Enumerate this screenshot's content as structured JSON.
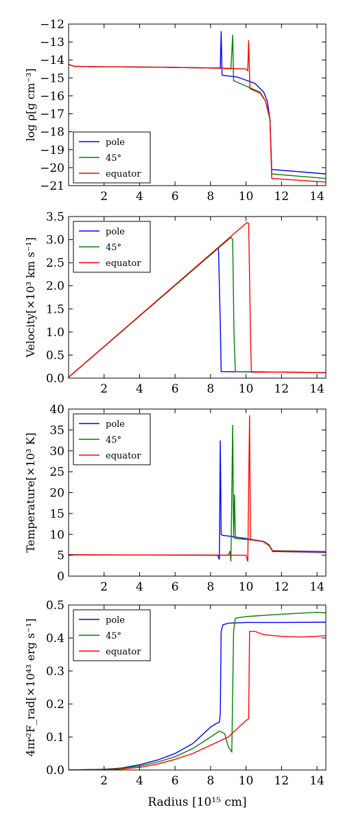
{
  "colors": {
    "pole": "#0000ff",
    "deg45": "#008000",
    "equator": "#ff0000",
    "axes": "#000000"
  },
  "x_axis": {
    "label": "Radius [10¹⁵ cm]",
    "ticks": [
      "2",
      "4",
      "6",
      "8",
      "10",
      "12",
      "14"
    ],
    "range": [
      0,
      14.5
    ]
  },
  "legend_entries": [
    "pole",
    "45°",
    "equator"
  ],
  "chart_data": [
    {
      "type": "line",
      "ylabel": "log ρ[g cm⁻³]",
      "xlabel": "",
      "xlim": [
        0,
        14.5
      ],
      "ylim": [
        -21,
        -12
      ],
      "yticks": [
        "-12",
        "-13",
        "-14",
        "-15",
        "-16",
        "-17",
        "-18",
        "-19",
        "-20",
        "-21"
      ],
      "ytick_values": [
        -12,
        -13,
        -14,
        -15,
        -16,
        -17,
        -18,
        -19,
        -20,
        -21
      ],
      "legend_position": "bottom-left",
      "series": [
        {
          "name": "pole",
          "color": "#0000ff",
          "points": [
            [
              0,
              -14.25
            ],
            [
              0.3,
              -14.35
            ],
            [
              1.5,
              -14.38
            ],
            [
              5,
              -14.4
            ],
            [
              8.3,
              -14.45
            ],
            [
              8.55,
              -14.45
            ],
            [
              8.6,
              -12.4
            ],
            [
              8.65,
              -14.85
            ],
            [
              9.5,
              -14.95
            ],
            [
              10.5,
              -15.3
            ],
            [
              11,
              -15.8
            ],
            [
              11.2,
              -16.3
            ],
            [
              11.35,
              -17.3
            ],
            [
              11.45,
              -20.1
            ],
            [
              14.5,
              -20.35
            ]
          ]
        },
        {
          "name": "45°",
          "color": "#008000",
          "points": [
            [
              0,
              -14.25
            ],
            [
              0.3,
              -14.35
            ],
            [
              1.5,
              -14.38
            ],
            [
              5,
              -14.4
            ],
            [
              8.5,
              -14.45
            ],
            [
              9.15,
              -14.5
            ],
            [
              9.25,
              -12.6
            ],
            [
              9.3,
              -15.15
            ],
            [
              10,
              -15.45
            ],
            [
              10.8,
              -15.8
            ],
            [
              11.1,
              -16.3
            ],
            [
              11.35,
              -17.3
            ],
            [
              11.45,
              -20.35
            ],
            [
              14.5,
              -20.6
            ]
          ]
        },
        {
          "name": "equator",
          "color": "#ff0000",
          "points": [
            [
              0,
              -14.25
            ],
            [
              0.3,
              -14.35
            ],
            [
              1.5,
              -14.38
            ],
            [
              5,
              -14.4
            ],
            [
              8.5,
              -14.45
            ],
            [
              10,
              -14.5
            ],
            [
              10.1,
              -14.6
            ],
            [
              10.15,
              -12.9
            ],
            [
              10.22,
              -15.6
            ],
            [
              10.8,
              -15.85
            ],
            [
              11.1,
              -16.3
            ],
            [
              11.35,
              -17.3
            ],
            [
              11.45,
              -20.6
            ],
            [
              14.5,
              -20.8
            ]
          ]
        }
      ]
    },
    {
      "type": "line",
      "ylabel": "Velocity[×10³ km s⁻¹]",
      "xlabel": "",
      "xlim": [
        0,
        14.5
      ],
      "ylim": [
        0,
        3.5
      ],
      "yticks": [
        "0.0",
        "0.5",
        "1.0",
        "1.5",
        "2.0",
        "2.5",
        "3.0",
        "3.5"
      ],
      "ytick_values": [
        0,
        0.5,
        1.0,
        1.5,
        2.0,
        2.5,
        3.0,
        3.5
      ],
      "legend_position": "top-left",
      "series": [
        {
          "name": "pole",
          "color": "#0000ff",
          "points": [
            [
              0,
              0.02
            ],
            [
              8.45,
              2.82
            ],
            [
              8.55,
              1.2
            ],
            [
              8.6,
              0.14
            ],
            [
              12,
              0.13
            ],
            [
              14.5,
              0.12
            ]
          ]
        },
        {
          "name": "45°",
          "color": "#008000",
          "points": [
            [
              0,
              0.02
            ],
            [
              9.15,
              3.05
            ],
            [
              9.25,
              3.0
            ],
            [
              9.32,
              1.0
            ],
            [
              9.4,
              0.14
            ],
            [
              12,
              0.13
            ],
            [
              14.5,
              0.12
            ]
          ]
        },
        {
          "name": "equator",
          "color": "#ff0000",
          "points": [
            [
              0,
              0.02
            ],
            [
              10.05,
              3.37
            ],
            [
              10.15,
              3.35
            ],
            [
              10.25,
              1.0
            ],
            [
              10.3,
              0.13
            ],
            [
              12,
              0.13
            ],
            [
              14.5,
              0.12
            ]
          ]
        }
      ]
    },
    {
      "type": "line",
      "ylabel": "Temperature[×10³ K]",
      "xlabel": "",
      "xlim": [
        0,
        14.5
      ],
      "ylim": [
        0,
        40
      ],
      "yticks": [
        "0",
        "5",
        "10",
        "15",
        "20",
        "25",
        "30",
        "35",
        "40"
      ],
      "ytick_values": [
        0,
        5,
        10,
        15,
        20,
        25,
        30,
        35,
        40
      ],
      "legend_position": "top-left",
      "series": [
        {
          "name": "pole",
          "color": "#0000ff",
          "points": [
            [
              0,
              5.1
            ],
            [
              8.4,
              5.0
            ],
            [
              8.5,
              4.0
            ],
            [
              8.55,
              32.5
            ],
            [
              8.6,
              10
            ],
            [
              8.65,
              9.8
            ],
            [
              10,
              9.0
            ],
            [
              11,
              8.3
            ],
            [
              11.3,
              7.5
            ],
            [
              11.5,
              5.9
            ],
            [
              14.5,
              5.7
            ]
          ]
        },
        {
          "name": "45°",
          "color": "#008000",
          "points": [
            [
              0,
              5.1
            ],
            [
              9.0,
              5.0
            ],
            [
              9.1,
              6.0
            ],
            [
              9.15,
              3.5
            ],
            [
              9.25,
              36.2
            ],
            [
              9.3,
              9.0
            ],
            [
              9.35,
              19.5
            ],
            [
              9.4,
              9.0
            ],
            [
              10,
              8.8
            ],
            [
              11,
              8.3
            ],
            [
              11.3,
              7.5
            ],
            [
              11.5,
              6.1
            ],
            [
              14.5,
              5.9
            ]
          ]
        },
        {
          "name": "equator",
          "color": "#ff0000",
          "points": [
            [
              0,
              5.1
            ],
            [
              10.0,
              5.0
            ],
            [
              10.1,
              3.5
            ],
            [
              10.2,
              38.5
            ],
            [
              10.25,
              8.8
            ],
            [
              11,
              8.2
            ],
            [
              11.3,
              7.3
            ],
            [
              11.5,
              6.0
            ],
            [
              14.5,
              5.8
            ]
          ]
        }
      ]
    },
    {
      "type": "line",
      "ylabel": "4πr²F_rad[×10⁴³ erg s⁻¹]",
      "xlabel": "Radius [10¹⁵ cm]",
      "xlim": [
        0,
        14.5
      ],
      "ylim": [
        0,
        0.5
      ],
      "yticks": [
        "0.0",
        "0.1",
        "0.2",
        "0.3",
        "0.4",
        "0.5"
      ],
      "ytick_values": [
        0,
        0.1,
        0.2,
        0.3,
        0.4,
        0.5
      ],
      "legend_position": "top-left",
      "series": [
        {
          "name": "pole",
          "color": "#0000ff",
          "points": [
            [
              0,
              0
            ],
            [
              2,
              0.002
            ],
            [
              3,
              0.006
            ],
            [
              4,
              0.016
            ],
            [
              5,
              0.03
            ],
            [
              6,
              0.05
            ],
            [
              7,
              0.08
            ],
            [
              8,
              0.13
            ],
            [
              8.3,
              0.14
            ],
            [
              8.5,
              0.145
            ],
            [
              8.55,
              0.17
            ],
            [
              8.6,
              0.42
            ],
            [
              8.7,
              0.44
            ],
            [
              9,
              0.445
            ],
            [
              10,
              0.447
            ],
            [
              12,
              0.447
            ],
            [
              14.5,
              0.448
            ]
          ]
        },
        {
          "name": "45°",
          "color": "#008000",
          "points": [
            [
              0,
              0
            ],
            [
              2,
              0.002
            ],
            [
              3,
              0.005
            ],
            [
              4,
              0.012
            ],
            [
              5,
              0.024
            ],
            [
              6,
              0.04
            ],
            [
              7,
              0.065
            ],
            [
              8,
              0.1
            ],
            [
              8.5,
              0.118
            ],
            [
              8.8,
              0.11
            ],
            [
              9.0,
              0.07
            ],
            [
              9.2,
              0.055
            ],
            [
              9.3,
              0.42
            ],
            [
              9.4,
              0.46
            ],
            [
              10,
              0.465
            ],
            [
              12,
              0.472
            ],
            [
              14,
              0.478
            ],
            [
              14.5,
              0.476
            ]
          ]
        },
        {
          "name": "equator",
          "color": "#ff0000",
          "points": [
            [
              0,
              0
            ],
            [
              2,
              0.001
            ],
            [
              3,
              0.003
            ],
            [
              4,
              0.008
            ],
            [
              5,
              0.018
            ],
            [
              6,
              0.032
            ],
            [
              7,
              0.05
            ],
            [
              8,
              0.075
            ],
            [
              9,
              0.1
            ],
            [
              9.5,
              0.125
            ],
            [
              10,
              0.15
            ],
            [
              10.15,
              0.155
            ],
            [
              10.2,
              0.42
            ],
            [
              10.5,
              0.42
            ],
            [
              11,
              0.41
            ],
            [
              12,
              0.405
            ],
            [
              13,
              0.403
            ],
            [
              14,
              0.405
            ],
            [
              14.5,
              0.407
            ]
          ]
        }
      ]
    }
  ]
}
